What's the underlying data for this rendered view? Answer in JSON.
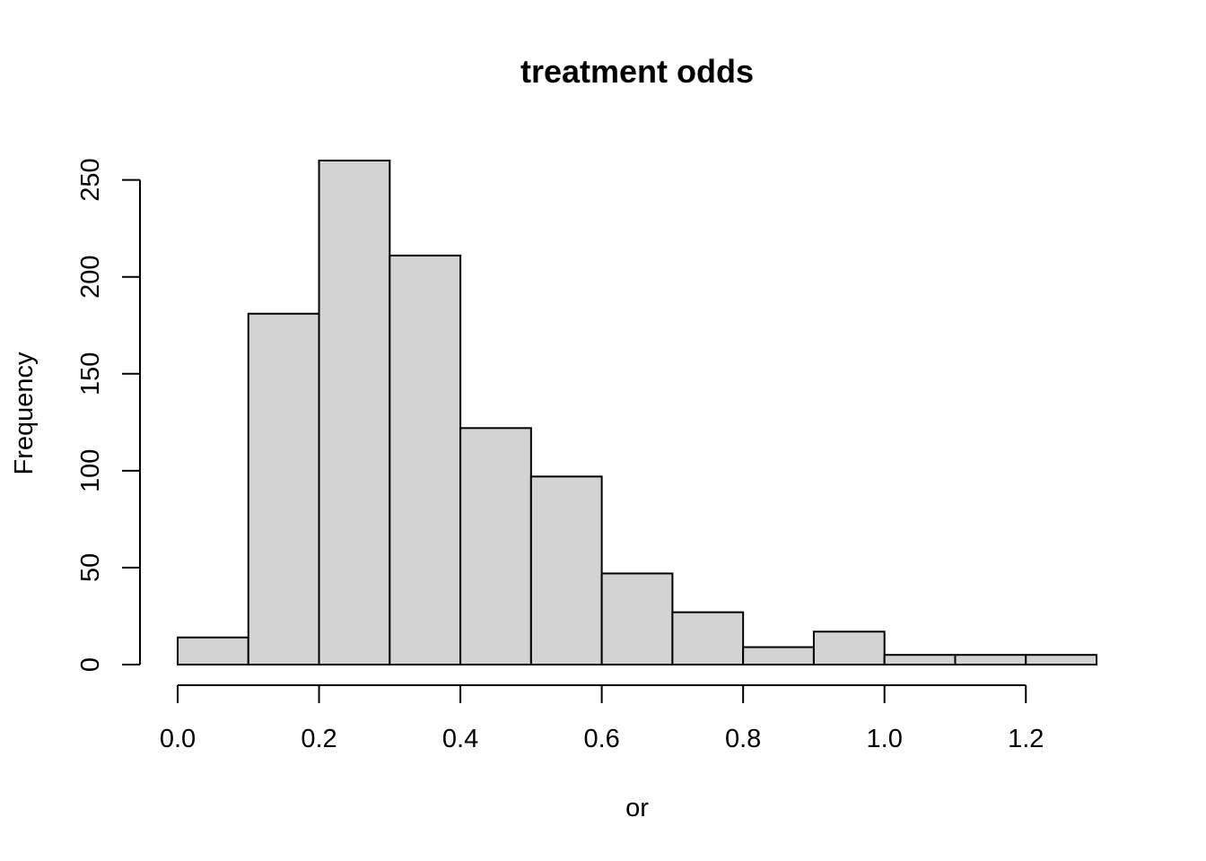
{
  "chart_data": {
    "type": "bar",
    "title": "treatment odds",
    "xlabel": "or",
    "ylabel": "Frequency",
    "bins": [
      {
        "start": 0.0,
        "end": 0.1,
        "count": 14
      },
      {
        "start": 0.1,
        "end": 0.2,
        "count": 181
      },
      {
        "start": 0.2,
        "end": 0.3,
        "count": 260
      },
      {
        "start": 0.3,
        "end": 0.4,
        "count": 211
      },
      {
        "start": 0.4,
        "end": 0.5,
        "count": 122
      },
      {
        "start": 0.5,
        "end": 0.6,
        "count": 97
      },
      {
        "start": 0.6,
        "end": 0.7,
        "count": 47
      },
      {
        "start": 0.7,
        "end": 0.8,
        "count": 27
      },
      {
        "start": 0.8,
        "end": 0.9,
        "count": 9
      },
      {
        "start": 0.9,
        "end": 1.0,
        "count": 17
      },
      {
        "start": 1.0,
        "end": 1.1,
        "count": 5
      },
      {
        "start": 1.1,
        "end": 1.2,
        "count": 5
      },
      {
        "start": 1.2,
        "end": 1.3,
        "count": 5
      }
    ],
    "xlim": [
      0.0,
      1.3
    ],
    "ylim": [
      0,
      260
    ],
    "x_ticks": [
      {
        "value": 0.0,
        "label": "0.0"
      },
      {
        "value": 0.2,
        "label": "0.2"
      },
      {
        "value": 0.4,
        "label": "0.4"
      },
      {
        "value": 0.6,
        "label": "0.6"
      },
      {
        "value": 0.8,
        "label": "0.8"
      },
      {
        "value": 1.0,
        "label": "1.0"
      },
      {
        "value": 1.2,
        "label": "1.2"
      }
    ],
    "y_ticks": [
      {
        "value": 0,
        "label": "0"
      },
      {
        "value": 50,
        "label": "50"
      },
      {
        "value": 100,
        "label": "100"
      },
      {
        "value": 150,
        "label": "150"
      },
      {
        "value": 200,
        "label": "200"
      },
      {
        "value": 250,
        "label": "250"
      }
    ],
    "grid": false,
    "colors": {
      "bar_fill": "#d3d3d3",
      "bar_stroke": "#000000",
      "axis": "#000000",
      "text": "#000000"
    }
  }
}
